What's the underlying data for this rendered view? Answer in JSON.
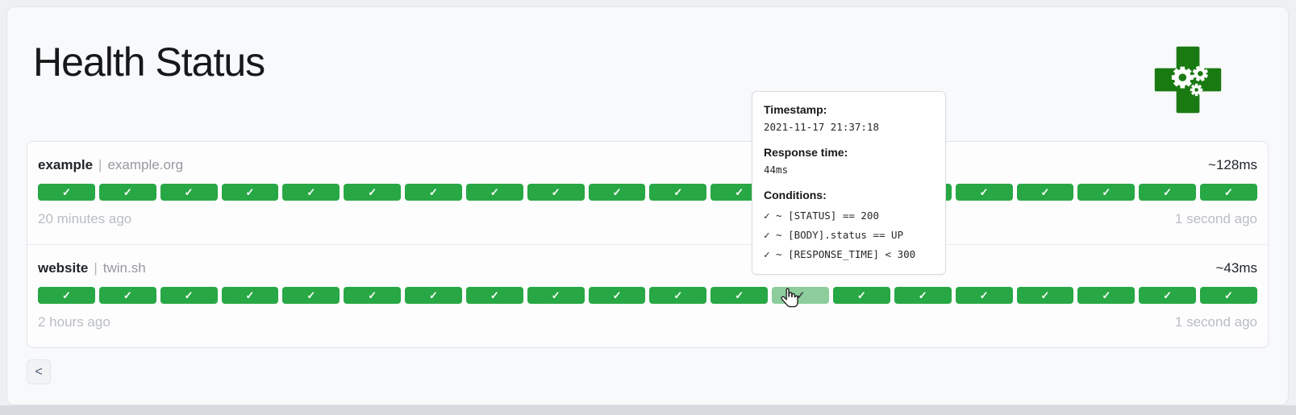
{
  "page": {
    "title": "Health Status"
  },
  "logo": {
    "name": "health-cross-gears-logo",
    "cross_color": "#1a7a12",
    "gear_color": "#ffffff"
  },
  "endpoints": [
    {
      "name": "example",
      "separator": "|",
      "host": "example.org",
      "avg_response_time": "~128ms",
      "oldest_result_label": "20 minutes ago",
      "newest_result_label": "1 second ago",
      "bars": {
        "count": 20,
        "status_icon": "✓",
        "hovered_index": null
      }
    },
    {
      "name": "website",
      "separator": "|",
      "host": "twin.sh",
      "avg_response_time": "~43ms",
      "oldest_result_label": "2 hours ago",
      "newest_result_label": "1 second ago",
      "bars": {
        "count": 20,
        "status_icon": "✓",
        "hovered_index": 12
      }
    }
  ],
  "tooltip": {
    "timestamp_label": "Timestamp:",
    "timestamp": "2021-11-17 21:37:18",
    "response_time_label": "Response time:",
    "response_time": "44ms",
    "conditions_label": "Conditions:",
    "conditions": [
      "✓ ~ [STATUS] == 200",
      "✓ ~ [BODY].status == UP",
      "✓ ~ [RESPONSE_TIME] < 300"
    ]
  },
  "pagination": {
    "previous_label": "<"
  },
  "colors": {
    "bar_success": "#28a745",
    "bar_success_hovered": "#8ccd9b",
    "card_background": "#f8f9fb",
    "muted_text": "#b9bdc3"
  }
}
